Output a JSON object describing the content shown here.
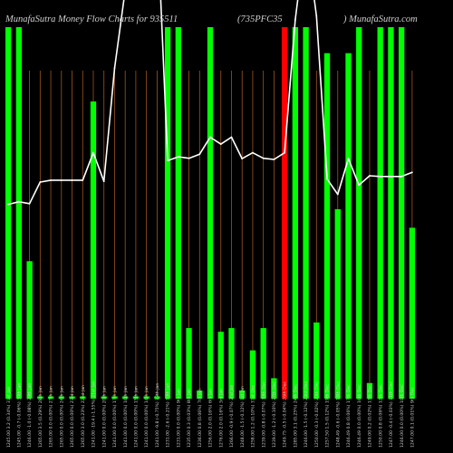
{
  "chart_data": {
    "type": "bar",
    "title_left": "MunafaSutra  Money Flow  Charts for 935511",
    "title_mid": "(735PFC35",
    "title_right": ") MunafaSutra.com",
    "ylim": [
      0,
      100
    ],
    "grid": "vertical",
    "colors": {
      "background": "#000000",
      "up_bar": "#00ff00",
      "down_bar": "#ff0000",
      "grid": "#a0561c",
      "line": "#ffffff"
    },
    "categories": [
      "1245.00 3.2 (0.34%) 31st Jan",
      "1245.00 -0.7 (-0.06%) 30th Jan",
      "1246.00 -1.0 (-0.08%) 29th Jan",
      "1265.00 3.5 (0.29%) 28th Jan",
      "1265.00 0.0 (0.00%) 27th Jan",
      "1265.00 0.0 (0.00%) 24th Jan",
      "1265.00 0.0 (0.00%) 23rd Jan",
      "1265.00 3.0 (0.23%) 22nd Jan",
      "1241.00 -19.4 (-1.55%) 21st Jan",
      "1241.00 0.0 (0.00%) 20th Jan",
      "1241.00 0.0 (0.00%) 17th Jan",
      "1241.00 0.0 (0.00%) 16th Jan",
      "1241.00 0.0 (0.00%) 15th Jan",
      "1241.00 0.0 (0.00%) 14th Jan",
      "1241.00 -9.8 (-0.75%) 13th Jan",
      "1231.00 -2.6 (-0.21%) 10th Jan",
      "1231.00 0.0 (0.00%) 9th Jan",
      "1235.00 0.3 (0.03%) 8th Jan",
      "1236.00 0.8 (0.06%) 7th Jan",
      "1256.00 2.0 (0.16%) 6th Jan",
      "1276.00 2.0 (0.16%) 3rd Jan",
      "1266.00 -0.9 (-0.07%) 2nd Jan",
      "1248.00 -1.5 (-0.12%) 1st Jan",
      "1258.00 1.2 (0.10%) 31st Dec",
      "1239.00 -0.8 (-0.07%) 30th Dec",
      "1239.00 -1.2 (-0.10%) 27th Dec",
      "1249.75 -0.5 (-0.04%) 26th Dec",
      "1285.00 3.1 (0.25%) 24th Dec",
      "1246.00 -1.5 (-0.12%) 23rd Dec",
      "1250.00 -0.3 (-0.02%) 20th Dec",
      "1257.50 1.5 (0.12%) 19th Dec",
      "1248.49 -0.6 (-0.05%) 18th Dec",
      "1246.49 0.8 (0.06%) 17th Dec",
      "1246.49 0.0 (0.00%) 16th Dec",
      "1249.00 0.2 (0.02%) 13th Dec",
      "1250.00 0.8 (0.06%) 12th Dec",
      "1247.00 -0.4 (-0.03%) 11th Dec",
      "1246.00 0.0 (0.00%) 10th Dec",
      "1247.00 0.1 (0.01%) 9th Dec"
    ],
    "bar_values": [
      100,
      100,
      37,
      0.6,
      0.6,
      0.6,
      0.6,
      0.6,
      80,
      0.6,
      0.6,
      0.6,
      0.6,
      0.6,
      0.6,
      100,
      100,
      19,
      2.2,
      100,
      18,
      19,
      2.2,
      13,
      19,
      5.5,
      100,
      100,
      100,
      20.5,
      93,
      51,
      93,
      100,
      4.2,
      100,
      100,
      100,
      46
    ],
    "bar_colors": [
      "up",
      "up",
      "up",
      "up",
      "up",
      "up",
      "up",
      "up",
      "up",
      "up",
      "up",
      "up",
      "up",
      "up",
      "up",
      "up",
      "up",
      "up",
      "up",
      "up",
      "up",
      "up",
      "up",
      "up",
      "up",
      "up",
      "down",
      "up",
      "up",
      "up",
      "up",
      "up",
      "up",
      "up",
      "up",
      "up",
      "up",
      "up",
      "up"
    ],
    "line_values": [
      52.3,
      53,
      52.5,
      58.3,
      58.8,
      58.8,
      58.8,
      58.8,
      66.2,
      58.5,
      89,
      110,
      130,
      140,
      130,
      64.1,
      65.1,
      64.7,
      65.8,
      70.4,
      68.5,
      70.4,
      64.6,
      66.2,
      64.7,
      64.4,
      66.2,
      102,
      125,
      103,
      59.1,
      55,
      64.6,
      57.5,
      60,
      59.8,
      59.8,
      59.8,
      60.9
    ]
  }
}
